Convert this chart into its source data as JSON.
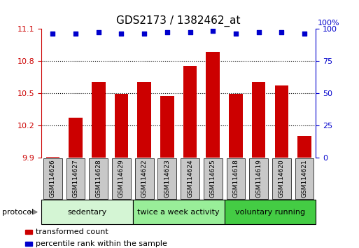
{
  "title": "GDS2173 / 1382462_at",
  "categories": [
    "GSM114626",
    "GSM114627",
    "GSM114628",
    "GSM114629",
    "GSM114622",
    "GSM114623",
    "GSM114624",
    "GSM114625",
    "GSM114618",
    "GSM114619",
    "GSM114620",
    "GSM114621"
  ],
  "bar_values": [
    9.905,
    10.27,
    10.6,
    10.49,
    10.6,
    10.47,
    10.75,
    10.88,
    10.49,
    10.6,
    10.57,
    10.1
  ],
  "dot_values": [
    96,
    96,
    97,
    96,
    96,
    97,
    97,
    98,
    96,
    97,
    97,
    96
  ],
  "ylim_left": [
    9.9,
    11.1
  ],
  "ylim_right": [
    0,
    100
  ],
  "yticks_left": [
    9.9,
    10.2,
    10.5,
    10.8,
    11.1
  ],
  "yticks_right": [
    0,
    25,
    50,
    75,
    100
  ],
  "bar_color": "#cc0000",
  "dot_color": "#0000cc",
  "tick_label_bg": "#c8c8c8",
  "protocol_groups": [
    {
      "label": "sedentary",
      "start": 0,
      "end": 3,
      "color": "#d4f5d4"
    },
    {
      "label": "twice a week activity",
      "start": 4,
      "end": 7,
      "color": "#99ee99"
    },
    {
      "label": "voluntary running",
      "start": 8,
      "end": 11,
      "color": "#44cc44"
    }
  ],
  "protocol_label": "protocol",
  "legend_bar_label": "transformed count",
  "legend_dot_label": "percentile rank within the sample",
  "title_fontsize": 11,
  "tick_fontsize": 8,
  "label_fontsize": 6.5
}
